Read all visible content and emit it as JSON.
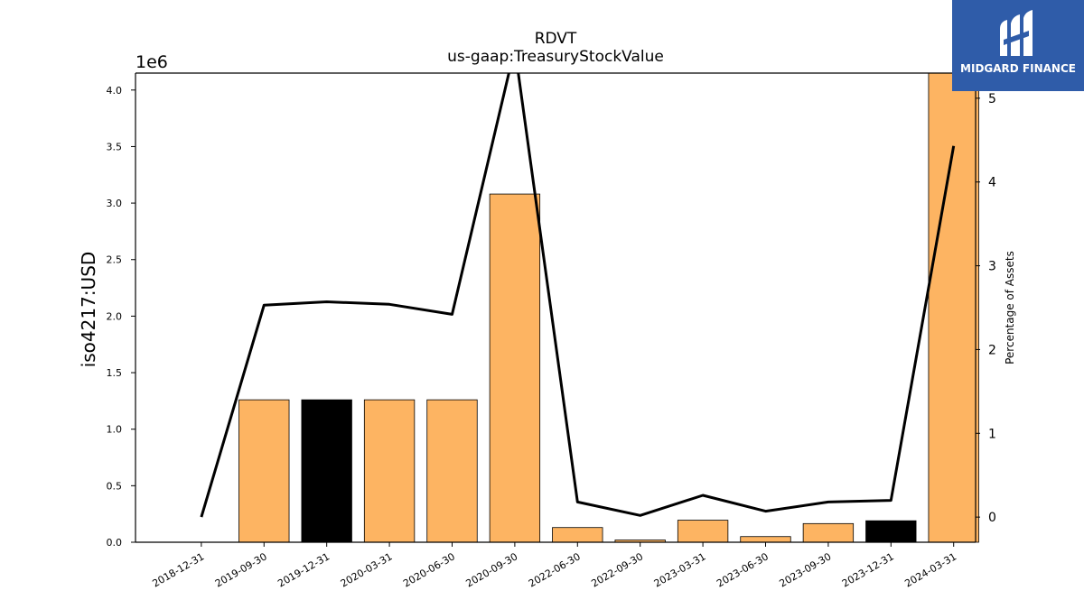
{
  "chart_data": {
    "type": "bar",
    "title": "RDVT",
    "subtitle": "us-gaap:TreasuryStockValue",
    "ylabel": "iso4217:USD",
    "ylabel_right": "Percentage of Assets",
    "y_offset_label": "1e6",
    "ylim": [
      0,
      4150000
    ],
    "y2lim": [
      -0.3,
      5.3
    ],
    "y_ticks": [
      "0.0",
      "0.5",
      "1.0",
      "1.5",
      "2.0",
      "2.5",
      "3.0",
      "3.5",
      "4.0"
    ],
    "y2_ticks": [
      "0",
      "1",
      "2",
      "3",
      "4",
      "5"
    ],
    "categories": [
      "2018-12-31",
      "2019-09-30",
      "2019-12-31",
      "2020-03-31",
      "2020-06-30",
      "2020-09-30",
      "2022-06-30",
      "2022-09-30",
      "2023-03-31",
      "2023-06-30",
      "2023-09-30",
      "2023-12-31",
      "2024-03-31"
    ],
    "series": [
      {
        "values": [
          0,
          1260000,
          1260000,
          1260000,
          1260000,
          3080000,
          130000,
          20000,
          195000,
          50000,
          165000,
          190000,
          4150000
        ],
        "colors": [
          "#fdb462",
          "#fdb462",
          "#000000",
          "#fdb462",
          "#fdb462",
          "#fdb462",
          "#fdb462",
          "#fdb462",
          "#fdb462",
          "#fdb462",
          "#fdb462",
          "#000000",
          "#fdb462"
        ]
      },
      {
        "axis": "right",
        "type": "line",
        "color": "#000000",
        "values": [
          0.0,
          2.53,
          2.57,
          2.54,
          2.42,
          5.6,
          0.18,
          0.02,
          0.26,
          0.07,
          0.18,
          0.2,
          4.43
        ]
      }
    ],
    "grid": false,
    "legend": "none"
  },
  "logo": {
    "text": "MIDGARD FINANCE",
    "color": "#2f5ca9"
  }
}
